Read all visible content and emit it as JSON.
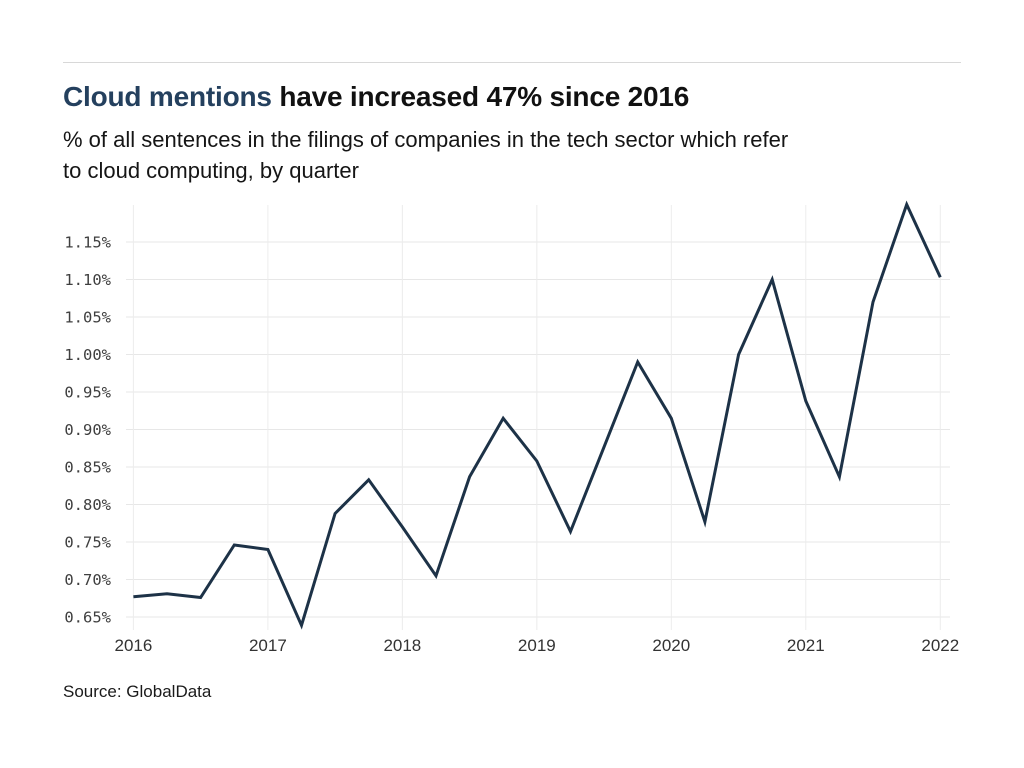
{
  "header": {
    "title_accent": "Cloud mentions",
    "title_rest": " have increased 47% since 2016",
    "subtitle_lines": [
      "% of all sentences in the filings of companies in the tech sector which refer",
      "to cloud computing, by quarter"
    ]
  },
  "source": "Source: GlobalData",
  "colors": {
    "accent": "#24405e",
    "line": "#1d3247",
    "y_gridline": "#e7e7e7",
    "x_gridline": "#ececec",
    "divider": "#d8d8d8"
  },
  "chart_data": {
    "type": "line",
    "title": "Cloud mentions have increased 47% since 2016",
    "subtitle": "% of all sentences in the filings of companies in the tech sector which refer to cloud computing, by quarter",
    "x": [
      "2016 Q1",
      "2016 Q2",
      "2016 Q3",
      "2016 Q4",
      "2017 Q1",
      "2017 Q2",
      "2017 Q3",
      "2017 Q4",
      "2018 Q1",
      "2018 Q2",
      "2018 Q3",
      "2018 Q4",
      "2019 Q1",
      "2019 Q2",
      "2019 Q3",
      "2019 Q4",
      "2020 Q1",
      "2020 Q2",
      "2020 Q3",
      "2020 Q4",
      "2021 Q1",
      "2021 Q2",
      "2021 Q3",
      "2021 Q4",
      "2022 Q1"
    ],
    "values": [
      0.677,
      0.681,
      0.676,
      0.746,
      0.74,
      0.639,
      0.788,
      0.833,
      0.77,
      0.705,
      0.837,
      0.915,
      0.858,
      0.764,
      0.877,
      0.99,
      0.915,
      0.777,
      1.0,
      1.1,
      0.938,
      0.837,
      1.07,
      1.2,
      1.103
    ],
    "unit": "%",
    "xlabel": "",
    "ylabel": "",
    "x_tick_labels": [
      "2016",
      "2017",
      "2018",
      "2019",
      "2020",
      "2021",
      "2022"
    ],
    "y_tick_labels": [
      "0.65%",
      "0.70%",
      "0.75%",
      "0.80%",
      "0.85%",
      "0.90%",
      "0.95%",
      "1.00%",
      "1.05%",
      "1.10%",
      "1.15%"
    ],
    "y_ticks": [
      0.65,
      0.7,
      0.75,
      0.8,
      0.85,
      0.9,
      0.95,
      1.0,
      1.05,
      1.1,
      1.15
    ],
    "ylim": [
      0.62,
      1.21
    ],
    "grid": true,
    "legend": false,
    "source": "Source: GlobalData"
  }
}
